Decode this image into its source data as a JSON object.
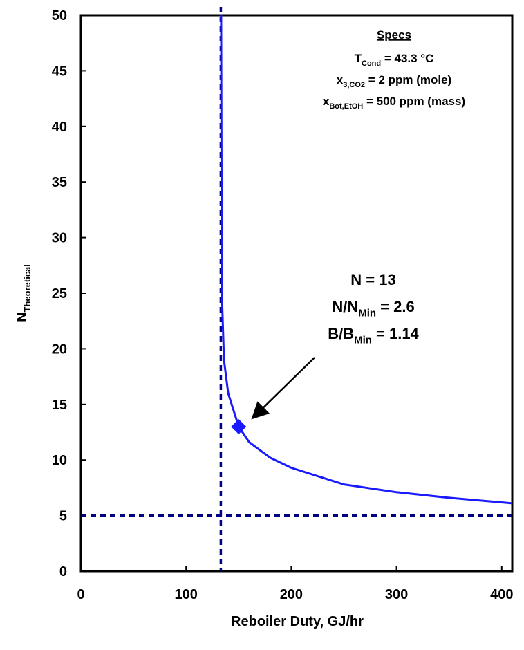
{
  "chart_data": {
    "type": "line",
    "x_label": "Reboiler Duty, GJ/hr",
    "y_label": {
      "main": "N",
      "sub": "Theoretical"
    },
    "xlim": [
      0,
      410
    ],
    "ylim": [
      0,
      50
    ],
    "xticks": [
      0,
      100,
      200,
      300,
      400
    ],
    "yticks": [
      0,
      5,
      10,
      15,
      20,
      25,
      30,
      35,
      40,
      45,
      50
    ],
    "series": [
      {
        "color": "#1a1aff",
        "x": [
          133.3,
          134,
          136,
          140,
          150,
          160,
          180,
          200,
          250,
          300,
          350,
          410
        ],
        "values": [
          50,
          25,
          19,
          16,
          13,
          11.6,
          10.2,
          9.3,
          7.8,
          7.1,
          6.6,
          6.1
        ]
      }
    ],
    "point": {
      "x": 150,
      "y": 13,
      "color": "#1a1aff"
    },
    "vlines": [
      133
    ],
    "hlines": [
      5
    ],
    "ref_color": "#000080",
    "specs": {
      "title": "Specs",
      "lines": [
        {
          "text": "T",
          "sub": "Cond",
          "rest": " = 43.3 °C"
        },
        {
          "text": "x",
          "sub": "3,CO2",
          "rest": " = 2 ppm (mole)"
        },
        {
          "text": "x",
          "sub": "Bot,EtOH",
          "rest": " = 500 ppm (mass)"
        }
      ]
    },
    "callout": [
      {
        "text": "N = 13"
      },
      {
        "text": "N/N",
        "sub": "Min",
        "rest": " = 2.6"
      },
      {
        "text": "B/B",
        "sub": "Min",
        "rest": " = 1.14"
      }
    ]
  }
}
